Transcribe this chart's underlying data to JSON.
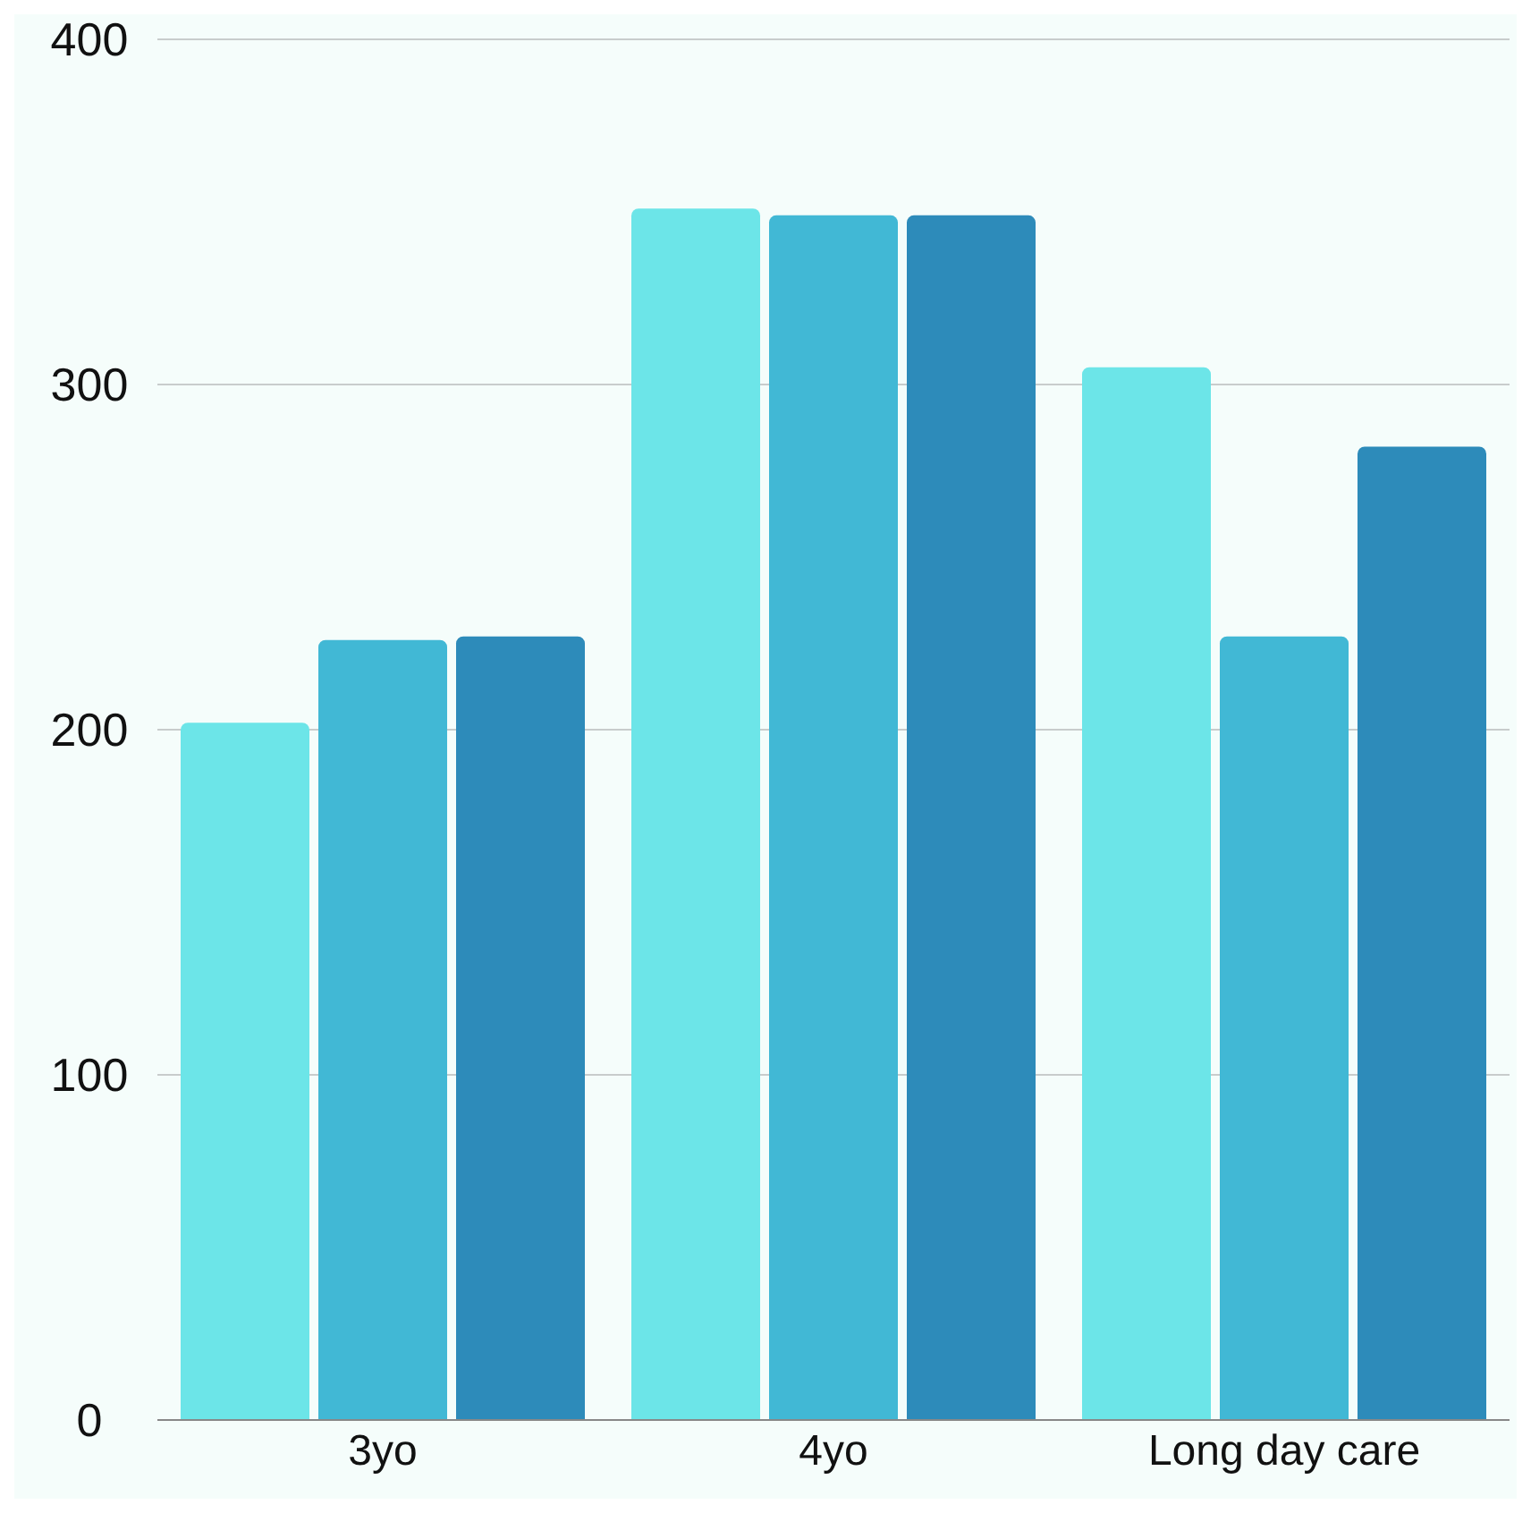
{
  "chart_data": {
    "type": "bar",
    "categories": [
      "3yo",
      "4yo",
      "Long day care"
    ],
    "series": [
      {
        "color": "#6ce5e8",
        "values": [
          202,
          351,
          305
        ]
      },
      {
        "color": "#41b8d5",
        "values": [
          226,
          349,
          227
        ]
      },
      {
        "color": "#2d8bba",
        "values": [
          227,
          349,
          282
        ]
      }
    ],
    "ylim": [
      0,
      400
    ],
    "yticks": [
      0,
      100,
      200,
      300,
      400
    ],
    "grid": "y"
  }
}
